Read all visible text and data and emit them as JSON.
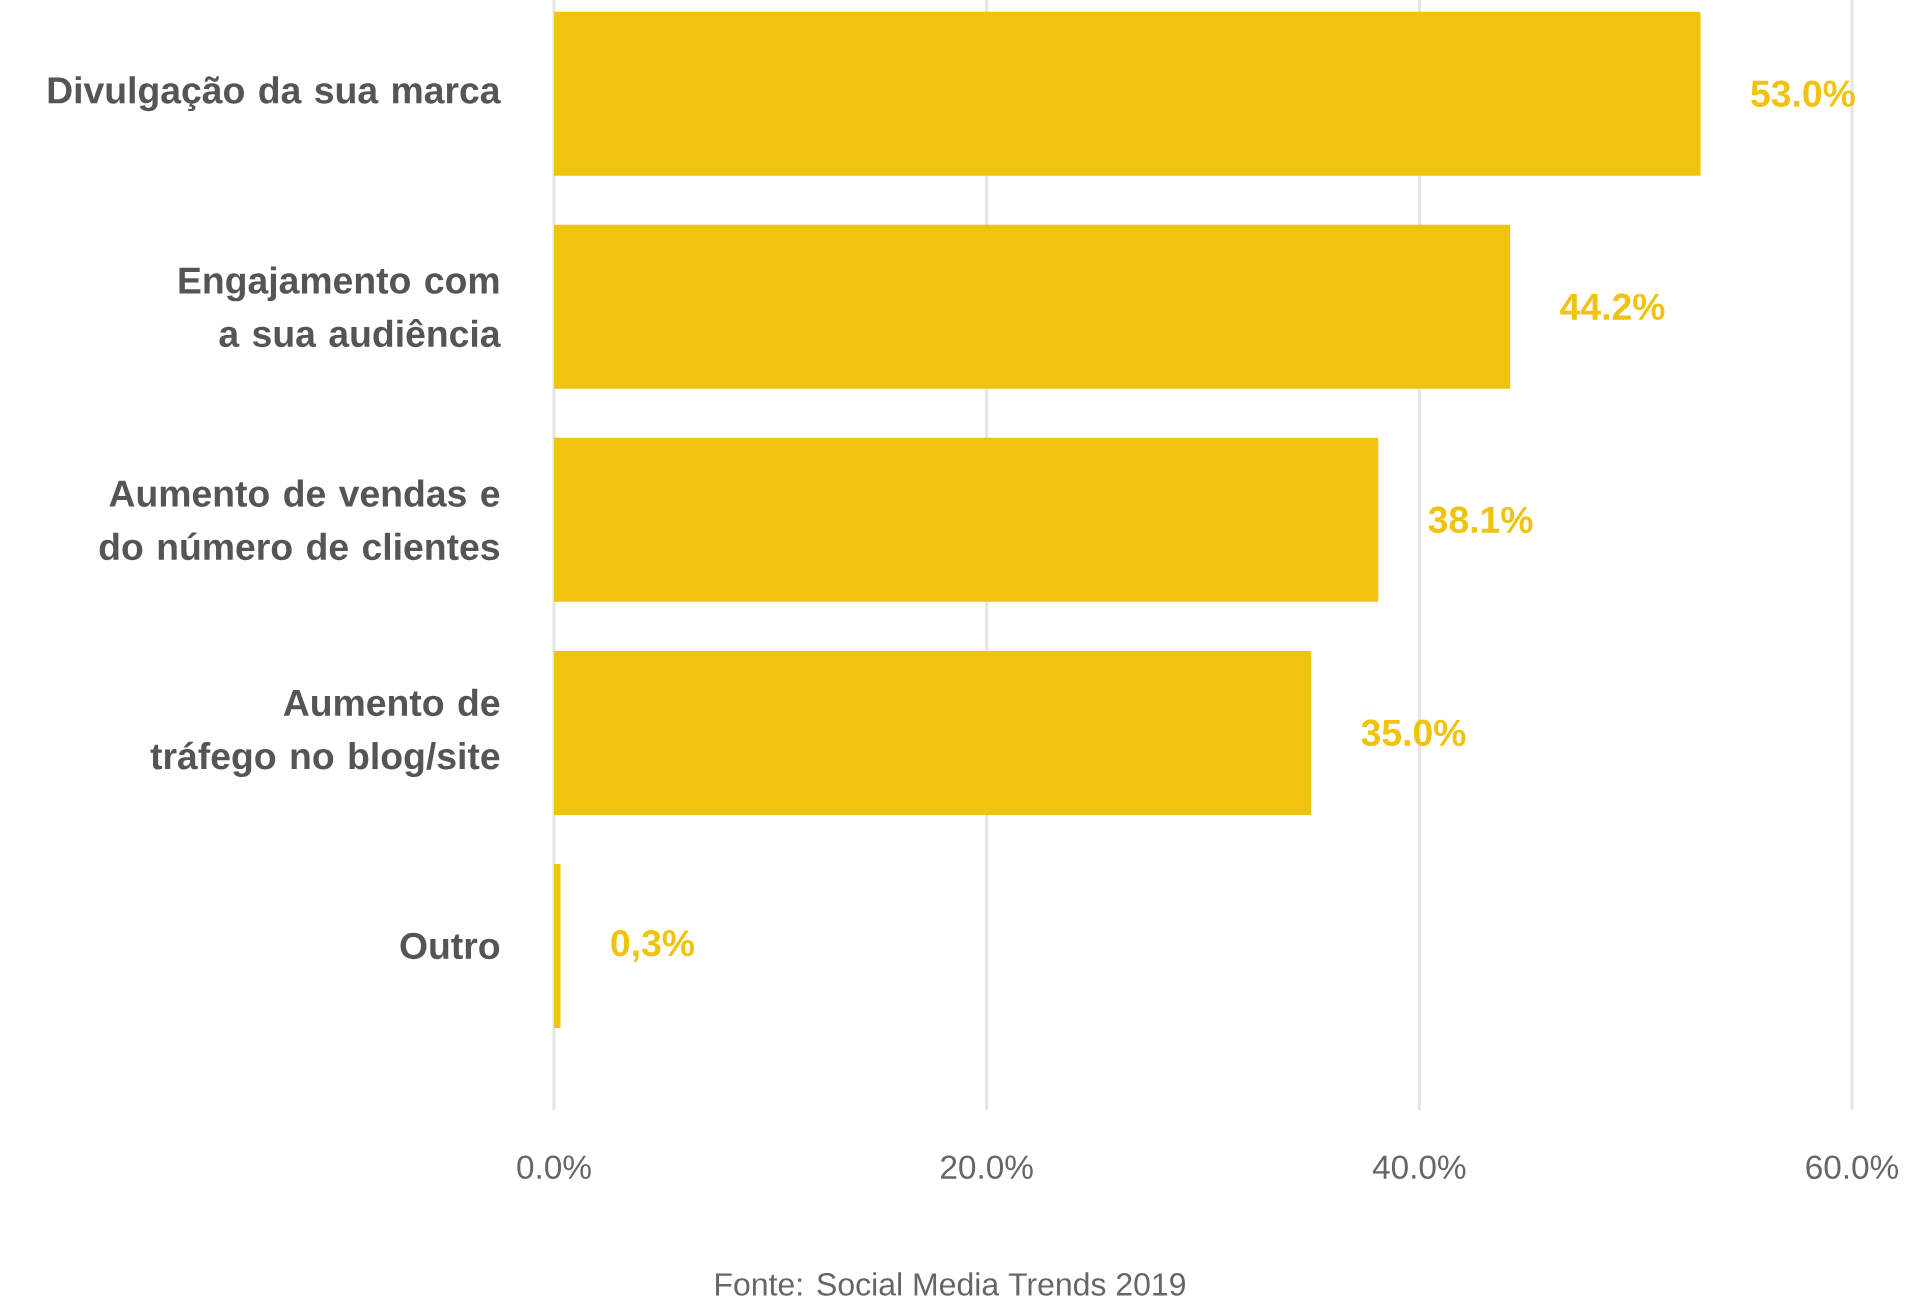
{
  "chart_data": {
    "type": "bar",
    "orientation": "horizontal",
    "categories": [
      "Divulgação da sua marca",
      "Engajamento com a sua audiência",
      "Aumento de vendas e do número de clientes",
      "Aumento de tráfego no blog/site",
      "Outro"
    ],
    "values": [
      53.0,
      44.2,
      38.1,
      35.0,
      0.3
    ],
    "value_labels": [
      "53.0%",
      "44.2%",
      "38.1%",
      "35.0%",
      "0,3%"
    ],
    "color": "#f0c30f",
    "xlim": [
      0,
      60
    ],
    "xticks": [
      {
        "value": 0,
        "label": "0.0%"
      },
      {
        "value": 20,
        "label": "20.0%"
      },
      {
        "value": 40,
        "label": "40.0%"
      },
      {
        "value": 60,
        "label": "60.0%"
      }
    ],
    "grid": "x",
    "annotations": [
      "Fonte: Social Media Trends 2019"
    ]
  }
}
